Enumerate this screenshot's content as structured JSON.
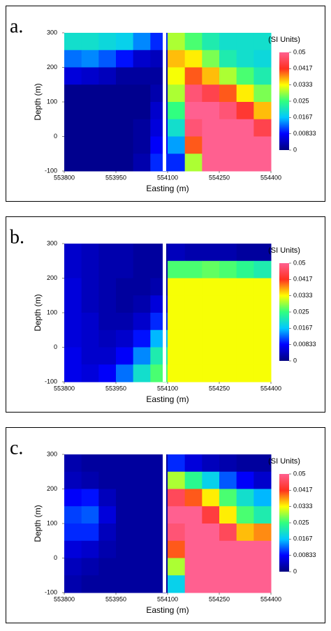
{
  "chart_data": [
    {
      "type": "heatmap",
      "label": "a.",
      "xlabel": "Easting (m)",
      "ylabel": "Depth (m)",
      "colorbar_label": "(SI Units)",
      "xlim": [
        553800,
        554400
      ],
      "xticks": [
        553800,
        553950,
        554100,
        554250,
        554400
      ],
      "ylim": [
        -100,
        300
      ],
      "yticks": [
        -100,
        0,
        100,
        200,
        300
      ],
      "zlim": [
        0,
        0.05
      ],
      "cticks": [
        0,
        0.00833,
        0.0167,
        0.025,
        0.0333,
        0.0417,
        0.05
      ],
      "colorscale": [
        "#00007f",
        "#0000ff",
        "#00c8ff",
        "#30ff80",
        "#ffff00",
        "#ff3020",
        "#ff6090"
      ],
      "x": [
        553825,
        553875,
        553925,
        553975,
        554025,
        554075,
        554125,
        554175,
        554225,
        554275,
        554325,
        554375
      ],
      "y": [
        275,
        225,
        175,
        125,
        75,
        25,
        -25,
        -75
      ],
      "z": [
        [
          0.02,
          0.02,
          0.019,
          0.018,
          0.014,
          0.01,
          0.03,
          0.026,
          0.022,
          0.02,
          0.02,
          0.02
        ],
        [
          0.013,
          0.014,
          0.012,
          0.009,
          0.005,
          0.004,
          0.036,
          0.034,
          0.028,
          0.022,
          0.02,
          0.019
        ],
        [
          0.006,
          0.005,
          0.004,
          0.002,
          0.002,
          0.002,
          0.033,
          0.04,
          0.036,
          0.03,
          0.026,
          0.022
        ],
        [
          0.001,
          0.001,
          0.001,
          0.001,
          0.001,
          0.003,
          0.03,
          0.048,
          0.045,
          0.04,
          0.034,
          0.028
        ],
        [
          0.001,
          0.001,
          0.001,
          0.001,
          0.001,
          0.005,
          0.025,
          0.05,
          0.05,
          0.048,
          0.043,
          0.036
        ],
        [
          0.001,
          0.001,
          0.001,
          0.001,
          0.002,
          0.006,
          0.02,
          0.048,
          0.05,
          0.05,
          0.05,
          0.045
        ],
        [
          0.001,
          0.001,
          0.001,
          0.001,
          0.002,
          0.008,
          0.015,
          0.04,
          0.05,
          0.05,
          0.05,
          0.05
        ],
        [
          0.001,
          0.001,
          0.001,
          0.001,
          0.003,
          0.01,
          0.01,
          0.03,
          0.05,
          0.05,
          0.05,
          0.05
        ]
      ]
    },
    {
      "type": "heatmap",
      "label": "b.",
      "xlabel": "Easting (m)",
      "ylabel": "Depth (m)",
      "colorbar_label": "(SI Units)",
      "xlim": [
        553800,
        554400
      ],
      "xticks": [
        553800,
        553950,
        554100,
        554250,
        554400
      ],
      "ylim": [
        -100,
        300
      ],
      "yticks": [
        -100,
        0,
        100,
        200,
        300
      ],
      "zlim": [
        0,
        0.05
      ],
      "cticks": [
        0,
        0.00833,
        0.0167,
        0.025,
        0.0333,
        0.0417,
        0.05
      ],
      "colorscale": [
        "#00007f",
        "#0000ff",
        "#00c8ff",
        "#30ff80",
        "#ffff00",
        "#ff3020",
        "#ff6090"
      ],
      "x": [
        553825,
        553875,
        553925,
        553975,
        554025,
        554075,
        554125,
        554175,
        554225,
        554275,
        554325,
        554375
      ],
      "y": [
        275,
        225,
        175,
        125,
        75,
        25,
        -25,
        -75
      ],
      "z": [
        [
          0.005,
          0.004,
          0.003,
          0.003,
          0.002,
          0.002,
          0.004,
          0.003,
          0.003,
          0.003,
          0.002,
          0.002
        ],
        [
          0.005,
          0.004,
          0.003,
          0.003,
          0.002,
          0.002,
          0.026,
          0.026,
          0.027,
          0.026,
          0.024,
          0.022
        ],
        [
          0.006,
          0.004,
          0.003,
          0.002,
          0.002,
          0.003,
          0.033,
          0.033,
          0.033,
          0.033,
          0.033,
          0.033
        ],
        [
          0.006,
          0.004,
          0.003,
          0.002,
          0.003,
          0.006,
          0.033,
          0.033,
          0.033,
          0.033,
          0.033,
          0.033
        ],
        [
          0.006,
          0.005,
          0.003,
          0.003,
          0.005,
          0.01,
          0.033,
          0.033,
          0.033,
          0.033,
          0.033,
          0.033
        ],
        [
          0.006,
          0.005,
          0.004,
          0.005,
          0.009,
          0.016,
          0.033,
          0.033,
          0.033,
          0.033,
          0.033,
          0.033
        ],
        [
          0.007,
          0.005,
          0.005,
          0.008,
          0.014,
          0.022,
          0.033,
          0.033,
          0.033,
          0.033,
          0.033,
          0.033
        ],
        [
          0.007,
          0.006,
          0.008,
          0.013,
          0.02,
          0.026,
          0.033,
          0.033,
          0.033,
          0.033,
          0.033,
          0.033
        ]
      ]
    },
    {
      "type": "heatmap",
      "label": "c.",
      "xlabel": "Easting (m)",
      "ylabel": "Depth (m)",
      "colorbar_label": "(SI Units)",
      "xlim": [
        553800,
        554400
      ],
      "xticks": [
        553800,
        553950,
        554100,
        554250,
        554400
      ],
      "ylim": [
        -100,
        300
      ],
      "yticks": [
        -100,
        0,
        100,
        200,
        300
      ],
      "zlim": [
        0,
        0.05
      ],
      "cticks": [
        0,
        0.00833,
        0.0167,
        0.025,
        0.0333,
        0.0417,
        0.05
      ],
      "colorscale": [
        "#00007f",
        "#0000ff",
        "#00c8ff",
        "#30ff80",
        "#ffff00",
        "#ff3020",
        "#ff6090"
      ],
      "x": [
        553825,
        553875,
        553925,
        553975,
        554025,
        554075,
        554125,
        554175,
        554225,
        554275,
        554325,
        554375
      ],
      "y": [
        275,
        225,
        175,
        125,
        75,
        25,
        -25,
        -75
      ],
      "z": [
        [
          0.003,
          0.002,
          0.002,
          0.002,
          0.002,
          0.002,
          0.01,
          0.006,
          0.004,
          0.003,
          0.002,
          0.002
        ],
        [
          0.004,
          0.003,
          0.002,
          0.002,
          0.002,
          0.002,
          0.03,
          0.024,
          0.018,
          0.012,
          0.008,
          0.005
        ],
        [
          0.008,
          0.009,
          0.004,
          0.002,
          0.002,
          0.002,
          0.046,
          0.04,
          0.034,
          0.026,
          0.02,
          0.016
        ],
        [
          0.011,
          0.012,
          0.006,
          0.002,
          0.002,
          0.002,
          0.05,
          0.05,
          0.044,
          0.034,
          0.026,
          0.022
        ],
        [
          0.01,
          0.01,
          0.004,
          0.002,
          0.002,
          0.002,
          0.048,
          0.05,
          0.05,
          0.046,
          0.036,
          0.038
        ],
        [
          0.006,
          0.005,
          0.003,
          0.002,
          0.002,
          0.002,
          0.04,
          0.05,
          0.05,
          0.05,
          0.05,
          0.05
        ],
        [
          0.004,
          0.003,
          0.002,
          0.002,
          0.002,
          0.002,
          0.03,
          0.05,
          0.05,
          0.05,
          0.05,
          0.05
        ],
        [
          0.003,
          0.002,
          0.002,
          0.002,
          0.002,
          0.002,
          0.018,
          0.05,
          0.05,
          0.05,
          0.05,
          0.05
        ]
      ]
    }
  ]
}
